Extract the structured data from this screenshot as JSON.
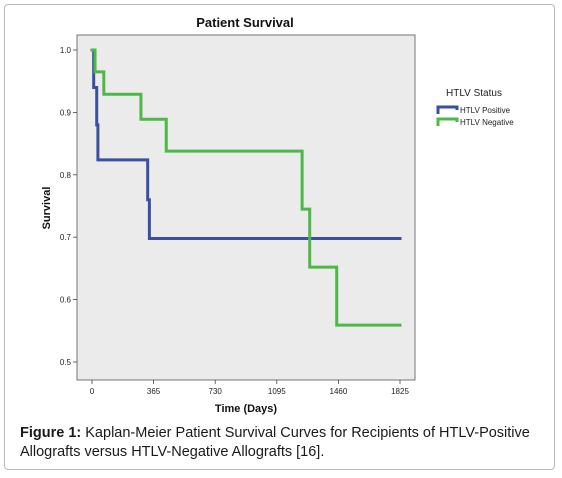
{
  "chart_data": {
    "type": "line",
    "step": true,
    "title": "Patient Survival",
    "xlabel": "Time (Days)",
    "ylabel": "Survival",
    "xlim": [
      0,
      1825
    ],
    "ylim": [
      0.5,
      1.0
    ],
    "xticks": [
      0,
      365,
      730,
      1095,
      1460,
      1825
    ],
    "yticks": [
      0.5,
      0.6,
      0.7,
      0.8,
      0.9,
      1.0
    ],
    "ytick_labels": [
      "0.5",
      "0.6",
      "0.7",
      "0.8",
      "0.9",
      "1.0"
    ],
    "grid": false,
    "background": "#ebebeb",
    "legend": {
      "title": "HTLV Status",
      "position": "right",
      "entries": [
        "HTLV Positive",
        "HTLV Negative"
      ]
    },
    "series": [
      {
        "name": "HTLV Positive",
        "color": "#3a4fa0",
        "x": [
          0,
          10,
          28,
          35,
          330,
          340,
          1825
        ],
        "y": [
          1.0,
          0.94,
          0.88,
          0.824,
          0.76,
          0.698,
          0.698
        ]
      },
      {
        "name": "HTLV Negative",
        "color": "#4cb847",
        "x": [
          0,
          18,
          70,
          290,
          440,
          1245,
          1290,
          1450,
          1825
        ],
        "y": [
          1.0,
          0.965,
          0.929,
          0.889,
          0.838,
          0.745,
          0.652,
          0.559,
          0.559
        ]
      }
    ]
  },
  "caption": {
    "label": "Figure 1:",
    "text": " Kaplan-Meier Patient Survival Curves for Recipients of HTLV-Positive Allografts versus HTLV-Negative Allografts [16]."
  }
}
